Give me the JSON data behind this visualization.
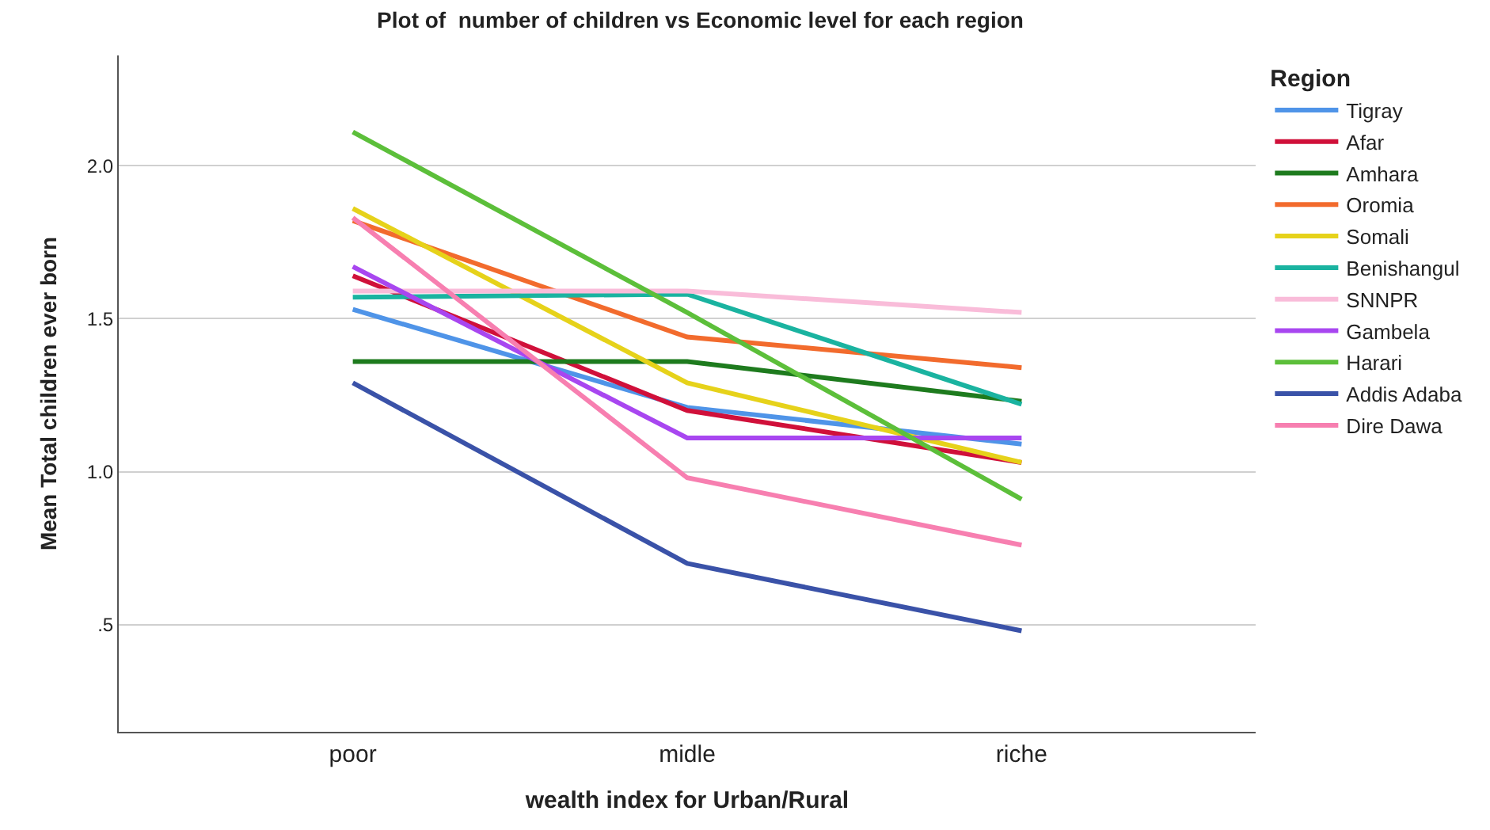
{
  "chart_data": {
    "type": "line",
    "title": "Plot of  number of children vs Economic level for each region",
    "xlabel": "wealth index for Urban/Rural",
    "ylabel": "Mean Total children ever born",
    "legend_title": "Region",
    "categories": [
      "poor",
      "midle",
      "riche"
    ],
    "series": [
      {
        "name": "Tigray",
        "color": "#4f94e8",
        "values": [
          1.53,
          1.21,
          1.09
        ]
      },
      {
        "name": "Afar",
        "color": "#d0103a",
        "values": [
          1.64,
          1.2,
          1.03
        ]
      },
      {
        "name": "Amhara",
        "color": "#1e7b1e",
        "values": [
          1.36,
          1.36,
          1.23
        ]
      },
      {
        "name": "Oromia",
        "color": "#f26b2d",
        "values": [
          1.82,
          1.44,
          1.34
        ]
      },
      {
        "name": "Somali",
        "color": "#e6d21a",
        "values": [
          1.86,
          1.29,
          1.03
        ]
      },
      {
        "name": "Benishangul",
        "color": "#1ab3a0",
        "values": [
          1.57,
          1.58,
          1.22
        ]
      },
      {
        "name": "SNNPR",
        "color": "#f9bcd9",
        "values": [
          1.59,
          1.59,
          1.52
        ]
      },
      {
        "name": "Gambela",
        "color": "#a846f0",
        "values": [
          1.67,
          1.11,
          1.11
        ]
      },
      {
        "name": "Harari",
        "color": "#5cbf3a",
        "values": [
          2.11,
          1.52,
          0.91
        ]
      },
      {
        "name": "Addis Adaba",
        "color": "#3a52a8",
        "values": [
          1.29,
          0.7,
          0.48
        ]
      },
      {
        "name": "Dire Dawa",
        "color": "#f77fb0",
        "values": [
          1.83,
          0.98,
          0.76
        ]
      }
    ],
    "ylim": [
      0.15,
      2.36
    ],
    "yticks": [
      {
        "value": 0.5,
        "label": ".5"
      },
      {
        "value": 1.0,
        "label": "1.0"
      },
      {
        "value": 1.5,
        "label": "1.5"
      },
      {
        "value": 2.0,
        "label": "2.0"
      }
    ],
    "grid": "y",
    "legend": "right",
    "marker": "none",
    "line_style": "solid"
  }
}
